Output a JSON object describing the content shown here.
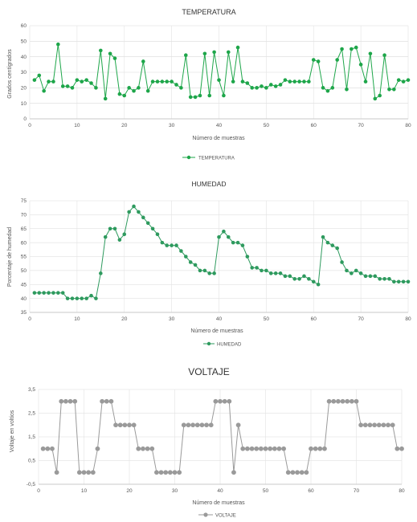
{
  "chart_data": [
    {
      "type": "line",
      "title": "TEMPERATURA",
      "xlabel": "Número de muestras",
      "ylabel": "Grados centígrados",
      "xlim": [
        0,
        80
      ],
      "ylim": [
        0,
        60
      ],
      "xticks": [
        "0",
        "10",
        "20",
        "30",
        "40",
        "50",
        "60",
        "70",
        "80"
      ],
      "yticks": [
        "0",
        "10",
        "20",
        "30",
        "40",
        "50",
        "60"
      ],
      "grid": true,
      "legend": "bottom",
      "color": "#1ea64a",
      "series": [
        {
          "name": "TEMPERATURA",
          "x": [
            1,
            2,
            3,
            4,
            5,
            6,
            7,
            8,
            9,
            10,
            11,
            12,
            13,
            14,
            15,
            16,
            17,
            18,
            19,
            20,
            21,
            22,
            23,
            24,
            25,
            26,
            27,
            28,
            29,
            30,
            31,
            32,
            33,
            34,
            35,
            36,
            37,
            38,
            39,
            40,
            41,
            42,
            43,
            44,
            45,
            46,
            47,
            48,
            49,
            50,
            51,
            52,
            53,
            54,
            55,
            56,
            57,
            58,
            59,
            60,
            61,
            62,
            63,
            64,
            65,
            66,
            67,
            68,
            69,
            70,
            71,
            72,
            73,
            74,
            75,
            76,
            77,
            78,
            79,
            80
          ],
          "values": [
            25,
            28,
            18,
            24,
            24,
            48,
            21,
            21,
            20,
            25,
            24,
            25,
            23,
            20,
            44,
            13,
            42,
            39,
            16,
            15,
            20,
            18,
            20,
            37,
            18,
            24,
            24,
            24,
            24,
            24,
            22,
            20,
            41,
            14,
            14,
            15,
            42,
            15,
            43,
            25,
            15,
            43,
            24,
            46,
            24,
            23,
            20,
            20,
            21,
            20,
            22,
            21,
            22,
            25,
            24,
            24,
            24,
            24,
            24,
            38,
            37,
            20,
            18,
            20,
            38,
            45,
            19,
            45,
            46,
            35,
            24,
            42,
            13,
            15,
            41,
            19,
            19,
            25,
            24,
            25
          ]
        }
      ]
    },
    {
      "type": "line",
      "title": "HUMEDAD",
      "xlabel": "Número de muestras",
      "ylabel": "Porcentaje de humedad",
      "xlim": [
        0,
        80
      ],
      "ylim": [
        35,
        75
      ],
      "xticks": [
        "0",
        "10",
        "20",
        "30",
        "40",
        "50",
        "60",
        "70",
        "80"
      ],
      "yticks": [
        "35",
        "40",
        "45",
        "50",
        "55",
        "60",
        "65",
        "70",
        "75"
      ],
      "grid": true,
      "legend": "bottom",
      "color": "#2e9a5e",
      "series": [
        {
          "name": "HUMEDAD",
          "x": [
            1,
            2,
            3,
            4,
            5,
            6,
            7,
            8,
            9,
            10,
            11,
            12,
            13,
            14,
            15,
            16,
            17,
            18,
            19,
            20,
            21,
            22,
            23,
            24,
            25,
            26,
            27,
            28,
            29,
            30,
            31,
            32,
            33,
            34,
            35,
            36,
            37,
            38,
            39,
            40,
            41,
            42,
            43,
            44,
            45,
            46,
            47,
            48,
            49,
            50,
            51,
            52,
            53,
            54,
            55,
            56,
            57,
            58,
            59,
            60,
            61,
            62,
            63,
            64,
            65,
            66,
            67,
            68,
            69,
            70,
            71,
            72,
            73,
            74,
            75,
            76,
            77,
            78,
            79,
            80
          ],
          "values": [
            42,
            42,
            42,
            42,
            42,
            42,
            42,
            40,
            40,
            40,
            40,
            40,
            41,
            40,
            49,
            62,
            65,
            65,
            61,
            63,
            71,
            73,
            71,
            69,
            67,
            65,
            63,
            60,
            59,
            59,
            59,
            57,
            55,
            53,
            52,
            50,
            50,
            49,
            49,
            62,
            64,
            62,
            60,
            60,
            59,
            55,
            51,
            51,
            50,
            50,
            49,
            49,
            49,
            48,
            48,
            47,
            47,
            48,
            47,
            46,
            45,
            62,
            60,
            59,
            58,
            53,
            50,
            49,
            50,
            49,
            48,
            48,
            48,
            47,
            47,
            47,
            46,
            46,
            46,
            46
          ]
        }
      ]
    },
    {
      "type": "line",
      "title": "VOLTAJE",
      "xlabel": "Número de muestras",
      "ylabel": "Voltaje en voltios",
      "xlim": [
        0,
        80
      ],
      "ylim": [
        -0.5,
        3.5
      ],
      "xticks": [
        "0",
        "10",
        "20",
        "30",
        "40",
        "50",
        "60",
        "70",
        "80"
      ],
      "yticks": [
        "-0,5",
        "0,5",
        "1,5",
        "2,5",
        "3,5"
      ],
      "ytick_values": [
        -0.5,
        0.5,
        1.5,
        2.5,
        3.5
      ],
      "grid": true,
      "legend": "bottom",
      "color": "#9a9a9a",
      "series": [
        {
          "name": "VOLTAJE",
          "x": [
            1,
            2,
            3,
            4,
            5,
            6,
            7,
            8,
            9,
            10,
            11,
            12,
            13,
            14,
            15,
            16,
            17,
            18,
            19,
            20,
            21,
            22,
            23,
            24,
            25,
            26,
            27,
            28,
            29,
            30,
            31,
            32,
            33,
            34,
            35,
            36,
            37,
            38,
            39,
            40,
            41,
            42,
            43,
            44,
            45,
            46,
            47,
            48,
            49,
            50,
            51,
            52,
            53,
            54,
            55,
            56,
            57,
            58,
            59,
            60,
            61,
            62,
            63,
            64,
            65,
            66,
            67,
            68,
            69,
            70,
            71,
            72,
            73,
            74,
            75,
            76,
            77,
            78,
            79,
            80
          ],
          "values": [
            1,
            1,
            1,
            0,
            3,
            3,
            3,
            3,
            0,
            0,
            0,
            0,
            1,
            3,
            3,
            3,
            2,
            2,
            2,
            2,
            2,
            1,
            1,
            1,
            1,
            0,
            0,
            0,
            0,
            0,
            0,
            2,
            2,
            2,
            2,
            2,
            2,
            2,
            3,
            3,
            3,
            3,
            0,
            2,
            1,
            1,
            1,
            1,
            1,
            1,
            1,
            1,
            1,
            1,
            0,
            0,
            0,
            0,
            0,
            1,
            1,
            1,
            1,
            3,
            3,
            3,
            3,
            3,
            3,
            3,
            2,
            2,
            2,
            2,
            2,
            2,
            2,
            2,
            1,
            1
          ]
        }
      ]
    }
  ]
}
